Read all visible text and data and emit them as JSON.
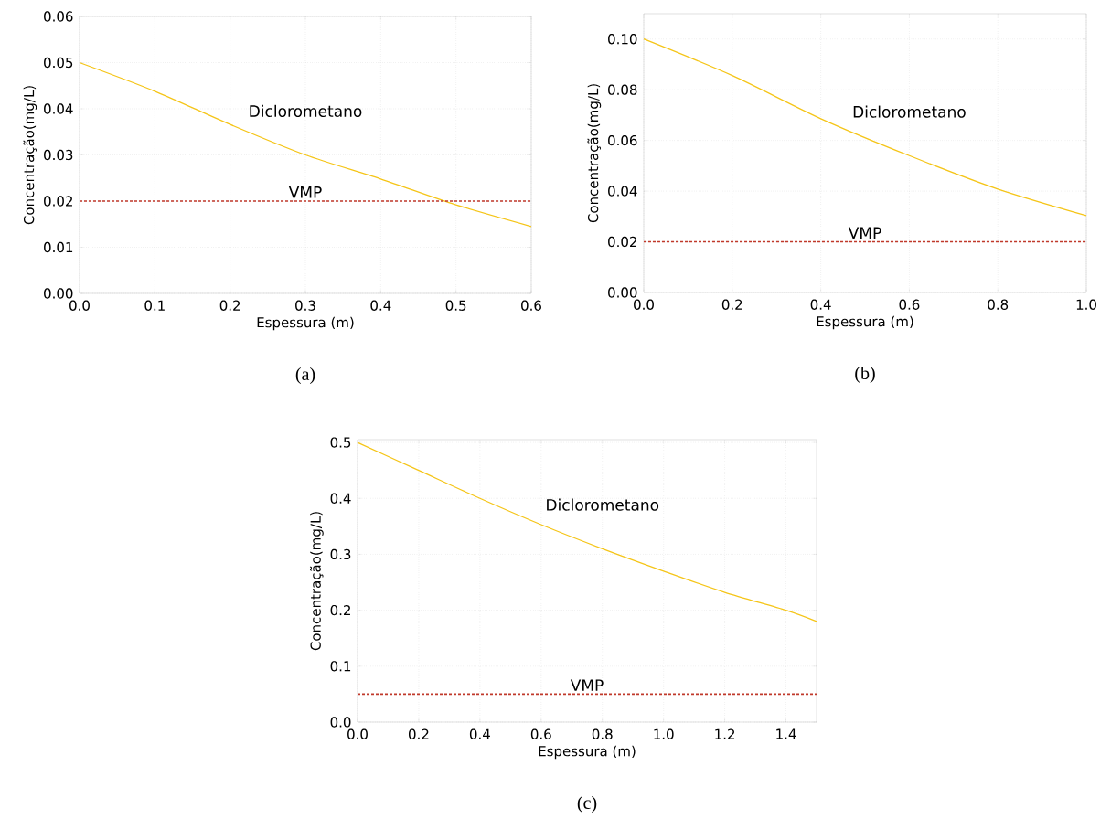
{
  "chart_data": [
    {
      "type": "line",
      "annotations": [
        "(a)"
      ],
      "xlabel": "Espessura (m)",
      "ylabel": "Concentração(mg/L)",
      "x": [
        0,
        0.1,
        0.2,
        0.3,
        0.4,
        0.5,
        0.6
      ],
      "series": [
        {
          "name": "Diclorometano",
          "color": "#f5c518",
          "values": [
            0.05,
            0.0438,
            0.0366,
            0.03,
            0.0248,
            0.0192,
            0.0145
          ]
        }
      ],
      "ref_lines": [
        {
          "axis": "y",
          "value": 0.02,
          "label": "VMP",
          "color": "#c0392b",
          "line_style": "dashed"
        }
      ],
      "xlim": [
        0,
        0.6
      ],
      "ylim": [
        0,
        0.06
      ],
      "xticks": [
        {
          "value": 0,
          "label": "0.0"
        },
        {
          "value": 0.1,
          "label": "0.1"
        },
        {
          "value": 0.2,
          "label": "0.2"
        },
        {
          "value": 0.3,
          "label": "0.3"
        },
        {
          "value": 0.4,
          "label": "0.4"
        },
        {
          "value": 0.5,
          "label": "0.5"
        },
        {
          "value": 0.6,
          "label": "0.6"
        }
      ],
      "yticks": [
        {
          "value": 0,
          "label": "0.00"
        },
        {
          "value": 0.01,
          "label": "0.01"
        },
        {
          "value": 0.02,
          "label": "0.02"
        },
        {
          "value": 0.03,
          "label": "0.03"
        },
        {
          "value": 0.04,
          "label": "0.04"
        },
        {
          "value": 0.05,
          "label": "0.05"
        },
        {
          "value": 0.06,
          "label": "0.06"
        }
      ],
      "grid": true
    },
    {
      "type": "line",
      "annotations": [
        "(b)"
      ],
      "xlabel": "Espessura (m)",
      "ylabel": "Concentração(mg/L)",
      "x": [
        0,
        0.2,
        0.4,
        0.6,
        0.8,
        1.0
      ],
      "series": [
        {
          "name": "Diclorometano",
          "color": "#f5c518",
          "values": [
            0.1,
            0.0856,
            0.0686,
            0.054,
            0.0408,
            0.0303
          ]
        }
      ],
      "ref_lines": [
        {
          "axis": "y",
          "value": 0.02,
          "label": "VMP",
          "color": "#c0392b",
          "line_style": "dashed"
        }
      ],
      "xlim": [
        0,
        1.0
      ],
      "ylim": [
        0,
        0.11
      ],
      "xticks": [
        {
          "value": 0,
          "label": "0.0"
        },
        {
          "value": 0.2,
          "label": "0.2"
        },
        {
          "value": 0.4,
          "label": "0.4"
        },
        {
          "value": 0.6,
          "label": "0.6"
        },
        {
          "value": 0.8,
          "label": "0.8"
        },
        {
          "value": 1.0,
          "label": "1.0"
        }
      ],
      "yticks": [
        {
          "value": 0,
          "label": "0.00"
        },
        {
          "value": 0.02,
          "label": "0.02"
        },
        {
          "value": 0.04,
          "label": "0.04"
        },
        {
          "value": 0.06,
          "label": "0.06"
        },
        {
          "value": 0.08,
          "label": "0.08"
        },
        {
          "value": 0.1,
          "label": "0.10"
        }
      ],
      "grid": true
    },
    {
      "type": "line",
      "annotations": [
        "(c)"
      ],
      "xlabel": "Espessura (m)",
      "ylabel": "Concentração(mg/L)",
      "x": [
        0,
        0.2,
        0.4,
        0.6,
        0.8,
        1.0,
        1.2,
        1.4,
        1.5
      ],
      "series": [
        {
          "name": "Diclorometano",
          "color": "#f5c518",
          "values": [
            0.5,
            0.45,
            0.4,
            0.353,
            0.31,
            0.27,
            0.232,
            0.2,
            0.18
          ]
        }
      ],
      "ref_lines": [
        {
          "axis": "y",
          "value": 0.05,
          "label": "VMP",
          "color": "#c0392b",
          "line_style": "dashed"
        }
      ],
      "xlim": [
        0,
        1.5
      ],
      "ylim": [
        0,
        0.505
      ],
      "xticks": [
        {
          "value": 0,
          "label": "0.0"
        },
        {
          "value": 0.2,
          "label": "0.2"
        },
        {
          "value": 0.4,
          "label": "0.4"
        },
        {
          "value": 0.6,
          "label": "0.6"
        },
        {
          "value": 0.8,
          "label": "0.8"
        },
        {
          "value": 1.0,
          "label": "1.0"
        },
        {
          "value": 1.2,
          "label": "1.2"
        },
        {
          "value": 1.4,
          "label": "1.4"
        }
      ],
      "yticks": [
        {
          "value": 0,
          "label": "0.0"
        },
        {
          "value": 0.1,
          "label": "0.1"
        },
        {
          "value": 0.2,
          "label": "0.2"
        },
        {
          "value": 0.3,
          "label": "0.3"
        },
        {
          "value": 0.4,
          "label": "0.4"
        },
        {
          "value": 0.5,
          "label": "0.5"
        }
      ],
      "grid": true
    }
  ]
}
